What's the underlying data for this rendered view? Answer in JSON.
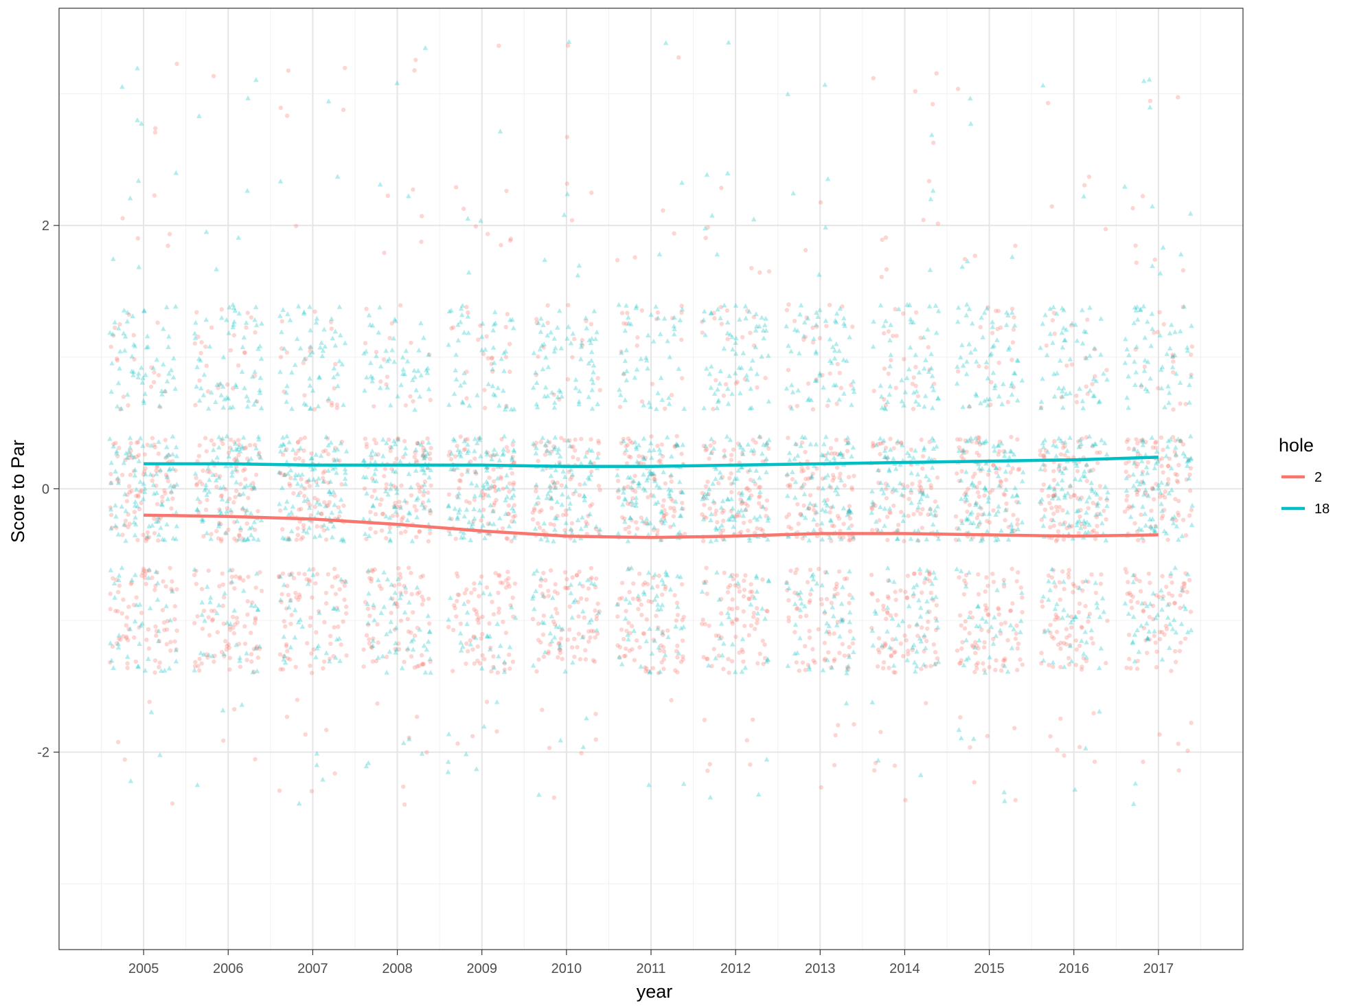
{
  "chart_data": {
    "type": "scatter",
    "title": "",
    "xlabel": "year",
    "ylabel": "Score to Par",
    "xlim": [
      2004.0,
      2018.0
    ],
    "ylim": [
      -3.5,
      3.65
    ],
    "x_ticks": [
      2005,
      2006,
      2007,
      2008,
      2009,
      2010,
      2011,
      2012,
      2013,
      2014,
      2015,
      2016,
      2017
    ],
    "y_ticks": [
      -2,
      0,
      2
    ],
    "grid": true,
    "jitter": {
      "x_width": 0.4,
      "y_height": 0.4
    },
    "legend": {
      "title": "hole",
      "position": "right",
      "entries": [
        {
          "label": "2",
          "color": "#F8766D"
        },
        {
          "label": "18",
          "color": "#00BFC4"
        }
      ]
    },
    "point_alpha": 0.3,
    "series": [
      {
        "name": "2",
        "color": "#F8766D",
        "marker": "circle",
        "smooth_x": [
          2005,
          2006,
          2007,
          2008,
          2009,
          2010,
          2011,
          2012,
          2013,
          2014,
          2015,
          2016,
          2017
        ],
        "smooth_y": [
          -0.2,
          -0.21,
          -0.23,
          -0.27,
          -0.32,
          -0.36,
          -0.37,
          -0.36,
          -0.34,
          -0.34,
          -0.35,
          -0.36,
          -0.35
        ],
        "score_distribution": {
          "scores": [
            -1,
            0,
            1
          ],
          "weights": [
            0.38,
            0.45,
            0.12
          ]
        }
      },
      {
        "name": "18",
        "color": "#00BFC4",
        "marker": "triangle",
        "smooth_x": [
          2005,
          2006,
          2007,
          2008,
          2009,
          2010,
          2011,
          2012,
          2013,
          2014,
          2015,
          2016,
          2017
        ],
        "smooth_y": [
          0.19,
          0.19,
          0.18,
          0.18,
          0.18,
          0.17,
          0.17,
          0.18,
          0.19,
          0.2,
          0.21,
          0.22,
          0.24
        ],
        "score_distribution": {
          "scores": [
            -1,
            0,
            1
          ],
          "weights": [
            0.2,
            0.45,
            0.3
          ]
        }
      }
    ]
  }
}
